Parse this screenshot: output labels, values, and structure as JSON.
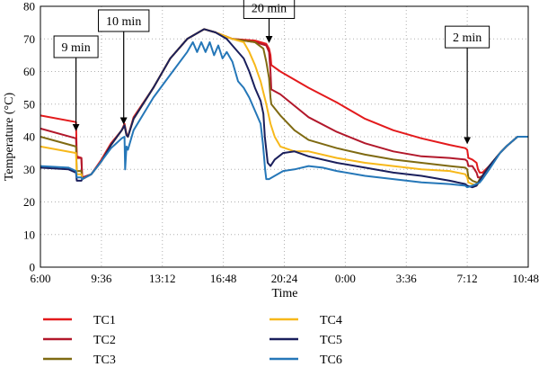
{
  "chart_data": {
    "type": "line",
    "xlabel": "Time",
    "ylabel": "Temperature (°C)",
    "ylim": [
      0,
      80
    ],
    "xlim": [
      0,
      1728
    ],
    "y_ticks": [
      0,
      10,
      20,
      30,
      40,
      50,
      60,
      70,
      80
    ],
    "x_ticks": [
      {
        "value": 0,
        "label": "6:00"
      },
      {
        "value": 216,
        "label": "9:36"
      },
      {
        "value": 432,
        "label": "13:12"
      },
      {
        "value": 648,
        "label": "16:48"
      },
      {
        "value": 864,
        "label": "20:24"
      },
      {
        "value": 1080,
        "label": "0:00"
      },
      {
        "value": 1296,
        "label": "3:36"
      },
      {
        "value": 1512,
        "label": "7:12"
      },
      {
        "value": 1728,
        "label": "10:48"
      }
    ],
    "grid": true,
    "legend_position": "bottom",
    "series": [
      {
        "name": "TC1",
        "color": "#e31a1c",
        "points": [
          [
            0,
            46.5
          ],
          [
            126,
            44.5
          ],
          [
            129,
            34
          ],
          [
            145,
            33.5
          ],
          [
            148,
            27
          ],
          [
            180,
            28.5
          ],
          [
            216,
            33
          ],
          [
            250,
            38
          ],
          [
            288,
            42
          ],
          [
            298,
            44
          ],
          [
            305,
            41
          ],
          [
            310,
            40
          ],
          [
            330,
            46
          ],
          [
            400,
            55
          ],
          [
            460,
            64
          ],
          [
            520,
            70
          ],
          [
            580,
            73
          ],
          [
            620,
            72
          ],
          [
            680,
            70
          ],
          [
            760,
            69.5
          ],
          [
            800,
            68.5
          ],
          [
            810,
            67
          ],
          [
            815,
            65
          ],
          [
            818,
            62
          ],
          [
            850,
            60
          ],
          [
            950,
            55
          ],
          [
            1050,
            50.5
          ],
          [
            1150,
            45.5
          ],
          [
            1250,
            42
          ],
          [
            1350,
            39.5
          ],
          [
            1450,
            37.5
          ],
          [
            1505,
            36.5
          ],
          [
            1512,
            36
          ],
          [
            1516,
            33.5
          ],
          [
            1530,
            33
          ],
          [
            1545,
            32
          ],
          [
            1550,
            30
          ],
          [
            1556,
            29
          ],
          [
            1566,
            29
          ],
          [
            1590,
            31
          ],
          [
            1628,
            35
          ],
          [
            1650,
            37
          ],
          [
            1690,
            40
          ],
          [
            1728,
            40
          ]
        ]
      },
      {
        "name": "TC2",
        "color": "#b2182b",
        "points": [
          [
            0,
            42.5
          ],
          [
            126,
            39.5
          ],
          [
            129,
            33.5
          ],
          [
            145,
            33.5
          ],
          [
            148,
            27.5
          ],
          [
            180,
            28.5
          ],
          [
            216,
            32.5
          ],
          [
            250,
            37.5
          ],
          [
            288,
            42
          ],
          [
            298,
            43.5
          ],
          [
            305,
            40.5
          ],
          [
            310,
            40
          ],
          [
            330,
            45.5
          ],
          [
            400,
            55
          ],
          [
            460,
            64
          ],
          [
            520,
            70
          ],
          [
            580,
            73
          ],
          [
            620,
            72
          ],
          [
            680,
            70
          ],
          [
            760,
            69
          ],
          [
            800,
            68
          ],
          [
            810,
            66
          ],
          [
            815,
            60
          ],
          [
            818,
            54.5
          ],
          [
            850,
            53
          ],
          [
            950,
            46
          ],
          [
            1050,
            41.5
          ],
          [
            1150,
            38
          ],
          [
            1250,
            35.5
          ],
          [
            1350,
            34
          ],
          [
            1450,
            33.5
          ],
          [
            1505,
            33
          ],
          [
            1512,
            32.5
          ],
          [
            1516,
            31
          ],
          [
            1530,
            31
          ],
          [
            1545,
            29
          ],
          [
            1550,
            27.5
          ],
          [
            1556,
            27.5
          ],
          [
            1566,
            28
          ],
          [
            1590,
            31
          ],
          [
            1628,
            35
          ],
          [
            1650,
            37
          ],
          [
            1690,
            40
          ],
          [
            1728,
            40
          ]
        ]
      },
      {
        "name": "TC3",
        "color": "#7f6a12",
        "points": [
          [
            0,
            40
          ],
          [
            126,
            37
          ],
          [
            129,
            29.5
          ],
          [
            145,
            29.5
          ],
          [
            148,
            27
          ],
          [
            180,
            28.5
          ],
          [
            216,
            32.5
          ],
          [
            250,
            37.5
          ],
          [
            288,
            42
          ],
          [
            298,
            43.5
          ],
          [
            305,
            40.5
          ],
          [
            310,
            40
          ],
          [
            330,
            45.5
          ],
          [
            400,
            55
          ],
          [
            460,
            64
          ],
          [
            520,
            70
          ],
          [
            580,
            73
          ],
          [
            620,
            72
          ],
          [
            680,
            70
          ],
          [
            760,
            69
          ],
          [
            790,
            67
          ],
          [
            800,
            63
          ],
          [
            810,
            58
          ],
          [
            815,
            52
          ],
          [
            818,
            50
          ],
          [
            850,
            46.5
          ],
          [
            900,
            42
          ],
          [
            950,
            39
          ],
          [
            1050,
            36.5
          ],
          [
            1150,
            34.5
          ],
          [
            1250,
            33
          ],
          [
            1350,
            32
          ],
          [
            1450,
            31
          ],
          [
            1505,
            30.5
          ],
          [
            1512,
            30
          ],
          [
            1516,
            27.5
          ],
          [
            1530,
            26.5
          ],
          [
            1545,
            26
          ],
          [
            1550,
            26
          ],
          [
            1556,
            27
          ],
          [
            1566,
            28
          ],
          [
            1590,
            31
          ],
          [
            1628,
            35
          ],
          [
            1650,
            37
          ],
          [
            1690,
            40
          ],
          [
            1728,
            40
          ]
        ]
      },
      {
        "name": "TC4",
        "color": "#f7b81a",
        "points": [
          [
            0,
            37
          ],
          [
            126,
            35
          ],
          [
            129,
            28.5
          ],
          [
            145,
            28.5
          ],
          [
            148,
            27
          ],
          [
            180,
            28.5
          ],
          [
            216,
            32.5
          ],
          [
            250,
            37.5
          ],
          [
            288,
            42
          ],
          [
            298,
            43.5
          ],
          [
            305,
            40.5
          ],
          [
            310,
            40
          ],
          [
            330,
            45.5
          ],
          [
            400,
            55
          ],
          [
            460,
            64
          ],
          [
            520,
            70
          ],
          [
            580,
            73
          ],
          [
            620,
            72
          ],
          [
            680,
            70
          ],
          [
            720,
            69
          ],
          [
            740,
            66
          ],
          [
            760,
            62
          ],
          [
            780,
            57
          ],
          [
            800,
            50
          ],
          [
            815,
            44
          ],
          [
            830,
            40
          ],
          [
            850,
            37
          ],
          [
            900,
            35.5
          ],
          [
            950,
            35.5
          ],
          [
            1050,
            33.5
          ],
          [
            1150,
            32
          ],
          [
            1250,
            31
          ],
          [
            1350,
            30
          ],
          [
            1450,
            29.5
          ],
          [
            1505,
            28.5
          ],
          [
            1512,
            27.5
          ],
          [
            1516,
            26
          ],
          [
            1530,
            25.5
          ],
          [
            1545,
            25
          ],
          [
            1550,
            25.5
          ],
          [
            1556,
            26.5
          ],
          [
            1566,
            28
          ],
          [
            1590,
            31
          ],
          [
            1628,
            35
          ],
          [
            1650,
            37
          ],
          [
            1690,
            40
          ],
          [
            1728,
            40
          ]
        ]
      },
      {
        "name": "TC5",
        "color": "#1a1f5c",
        "points": [
          [
            0,
            30.5
          ],
          [
            100,
            30
          ],
          [
            126,
            29
          ],
          [
            129,
            26.5
          ],
          [
            145,
            26.5
          ],
          [
            148,
            27
          ],
          [
            180,
            28.5
          ],
          [
            216,
            32.5
          ],
          [
            250,
            37.5
          ],
          [
            288,
            42
          ],
          [
            298,
            43.5
          ],
          [
            305,
            40.5
          ],
          [
            310,
            40
          ],
          [
            330,
            45.5
          ],
          [
            400,
            55
          ],
          [
            460,
            64
          ],
          [
            520,
            70
          ],
          [
            580,
            73
          ],
          [
            620,
            72
          ],
          [
            660,
            70
          ],
          [
            690,
            67
          ],
          [
            720,
            64
          ],
          [
            740,
            60
          ],
          [
            760,
            55
          ],
          [
            780,
            51
          ],
          [
            790,
            47
          ],
          [
            795,
            40
          ],
          [
            800,
            36
          ],
          [
            805,
            32
          ],
          [
            815,
            31
          ],
          [
            830,
            33
          ],
          [
            860,
            35
          ],
          [
            900,
            35.5
          ],
          [
            950,
            34
          ],
          [
            1050,
            32
          ],
          [
            1150,
            30.5
          ],
          [
            1250,
            29
          ],
          [
            1350,
            28
          ],
          [
            1450,
            26.5
          ],
          [
            1505,
            25.5
          ],
          [
            1512,
            25
          ],
          [
            1530,
            24.5
          ],
          [
            1545,
            25
          ],
          [
            1556,
            26.5
          ],
          [
            1566,
            28
          ],
          [
            1590,
            31
          ],
          [
            1628,
            35
          ],
          [
            1650,
            37
          ],
          [
            1690,
            40
          ],
          [
            1728,
            40
          ]
        ]
      },
      {
        "name": "TC6",
        "color": "#2577b8",
        "points": [
          [
            0,
            31
          ],
          [
            100,
            30.5
          ],
          [
            126,
            29.5
          ],
          [
            129,
            27.5
          ],
          [
            145,
            27.5
          ],
          [
            148,
            27
          ],
          [
            180,
            28.5
          ],
          [
            216,
            32.5
          ],
          [
            250,
            36.5
          ],
          [
            288,
            39.5
          ],
          [
            298,
            40
          ],
          [
            300,
            30
          ],
          [
            305,
            37
          ],
          [
            310,
            36
          ],
          [
            330,
            42
          ],
          [
            400,
            52
          ],
          [
            460,
            59
          ],
          [
            520,
            66
          ],
          [
            540,
            69
          ],
          [
            555,
            66
          ],
          [
            570,
            69
          ],
          [
            585,
            66
          ],
          [
            600,
            69
          ],
          [
            615,
            65
          ],
          [
            630,
            68
          ],
          [
            645,
            64
          ],
          [
            660,
            66
          ],
          [
            680,
            63
          ],
          [
            700,
            57
          ],
          [
            720,
            55
          ],
          [
            740,
            52
          ],
          [
            760,
            48
          ],
          [
            780,
            44
          ],
          [
            788,
            38
          ],
          [
            792,
            34
          ],
          [
            796,
            30
          ],
          [
            800,
            27
          ],
          [
            810,
            27
          ],
          [
            830,
            28
          ],
          [
            860,
            29.5
          ],
          [
            900,
            30
          ],
          [
            950,
            31
          ],
          [
            1000,
            30.5
          ],
          [
            1050,
            29.5
          ],
          [
            1150,
            28
          ],
          [
            1250,
            27
          ],
          [
            1350,
            26
          ],
          [
            1450,
            25.5
          ],
          [
            1505,
            25
          ],
          [
            1512,
            24.5
          ],
          [
            1530,
            25
          ],
          [
            1545,
            25.5
          ],
          [
            1556,
            26
          ],
          [
            1566,
            27
          ],
          [
            1590,
            30
          ],
          [
            1628,
            35
          ],
          [
            1650,
            37
          ],
          [
            1690,
            40
          ],
          [
            1728,
            40
          ]
        ]
      }
    ],
    "annotations": [
      {
        "text": "9 min",
        "x": 126,
        "y_top": 64,
        "y_tip": 42
      },
      {
        "text": "10 min",
        "x": 295,
        "y_top": 72,
        "y_tip": 44
      },
      {
        "text": "20 min",
        "x": 810,
        "y_top": 76,
        "y_tip": 69
      },
      {
        "text": "2 min",
        "x": 1512,
        "y_top": 67,
        "y_tip": 38
      }
    ]
  }
}
